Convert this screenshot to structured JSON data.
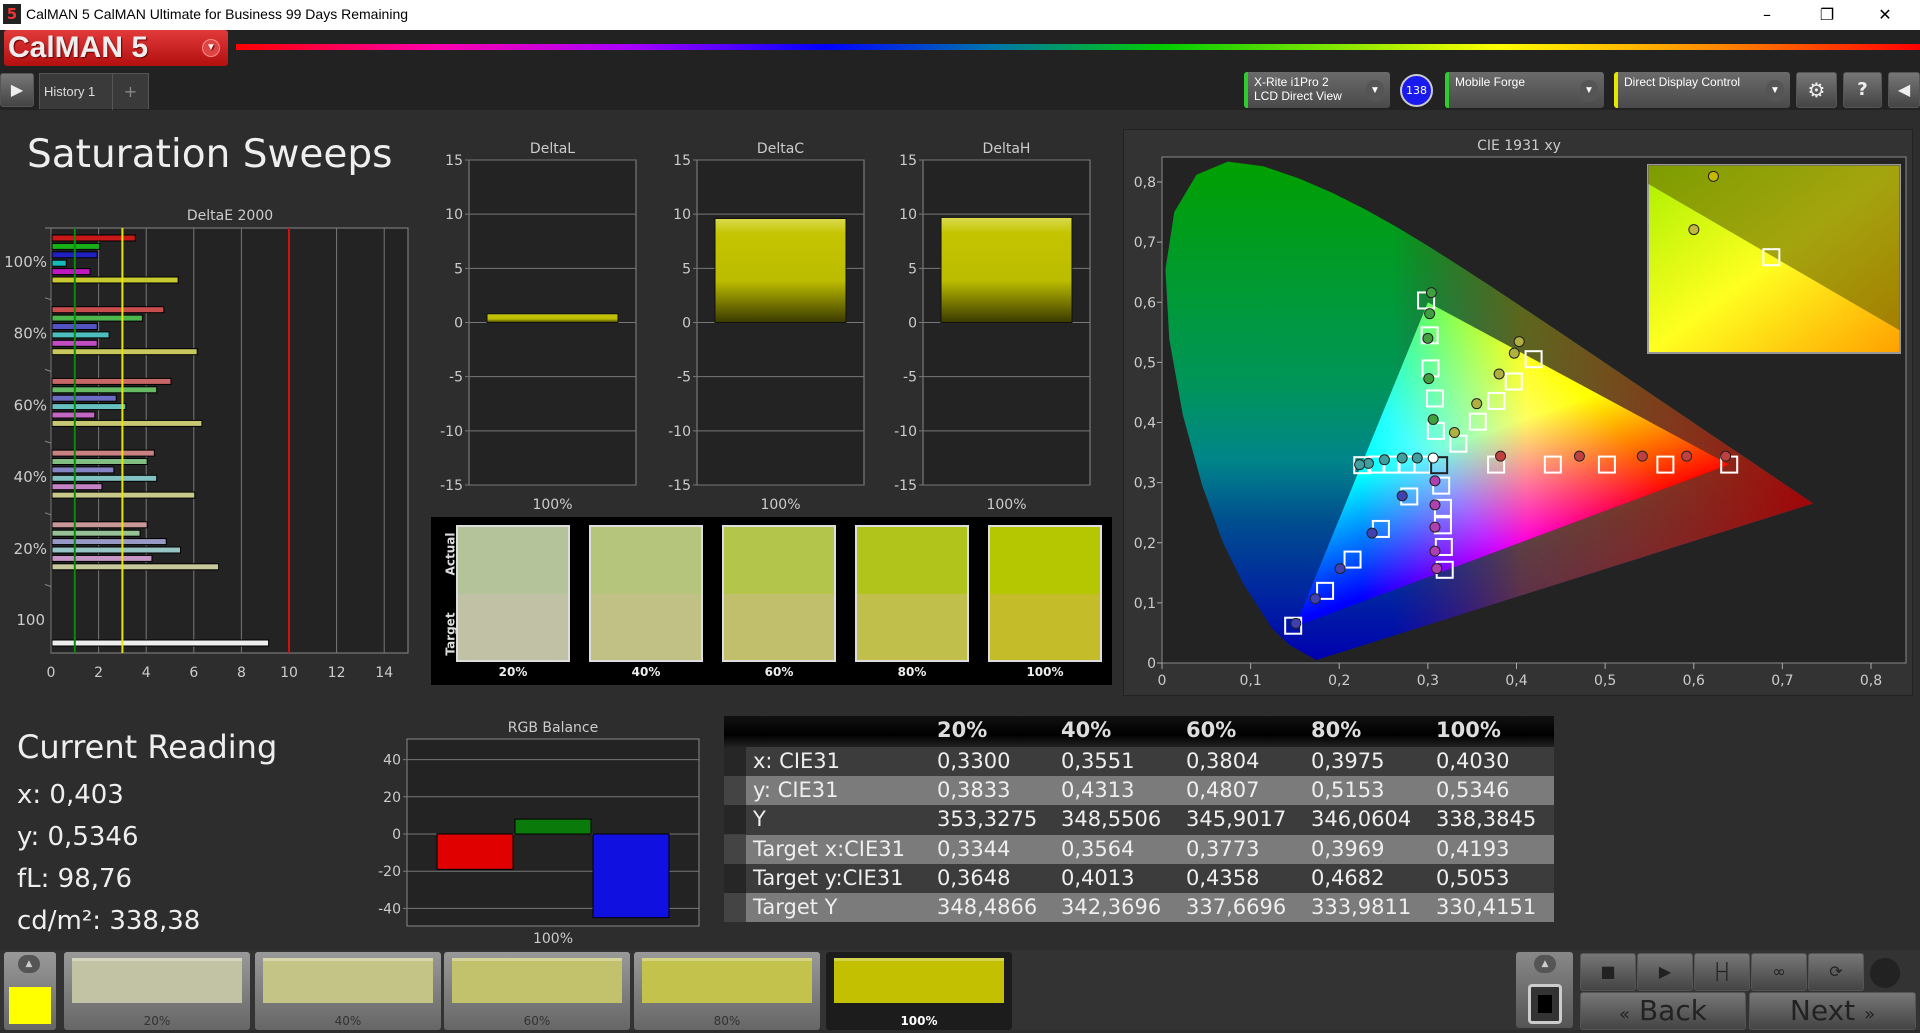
{
  "window": {
    "title": "CalMAN 5 CalMAN Ultimate for Business 99 Days Remaining",
    "app_icon": "5",
    "minimize": "–",
    "maximize": "❐",
    "close": "✕"
  },
  "header": {
    "logo": "CalMAN 5",
    "tab": "History 1",
    "add_tab": "+",
    "device1_line1": "X-Rite i1Pro 2",
    "device1_line2": "LCD Direct View",
    "badge": "138",
    "device2": "Mobile Forge",
    "device3": "Direct Display Control",
    "colors": {
      "device1": "#2ecc2e",
      "device2": "#2ecc2e",
      "device3": "#e6e600",
      "badge": "#1a1aee"
    }
  },
  "page_title": "Saturation Sweeps",
  "deltae": {
    "title": "DeltaE 2000",
    "xlim": [
      0,
      15
    ],
    "xticks": [
      "0",
      "2",
      "4",
      "6",
      "8",
      "10",
      "12",
      "14"
    ],
    "thresholds": [
      {
        "value": 1,
        "color": "#0a8a0a"
      },
      {
        "value": 3,
        "color": "#e6e600"
      },
      {
        "value": 10,
        "color": "#d01010"
      }
    ],
    "series_colors": [
      "#c81818",
      "#18b018",
      "#2020c0",
      "#18b8b8",
      "#c018c0",
      "#c8c830"
    ],
    "groups": [
      {
        "label": "100%",
        "values": [
          3.5,
          2.0,
          1.9,
          0.6,
          1.6,
          5.3
        ],
        "fade": 0
      },
      {
        "label": "80%",
        "values": [
          4.7,
          3.8,
          1.9,
          2.4,
          1.9,
          6.1
        ],
        "fade": 0.3
      },
      {
        "label": "60%",
        "values": [
          5.0,
          4.4,
          2.7,
          3.1,
          1.8,
          6.3
        ],
        "fade": 0.45
      },
      {
        "label": "40%",
        "values": [
          4.3,
          4.0,
          2.6,
          4.4,
          2.1,
          6.0
        ],
        "fade": 0.6
      },
      {
        "label": "20%",
        "values": [
          4.0,
          3.7,
          4.8,
          5.4,
          4.2,
          7.0
        ],
        "fade": 0.72
      }
    ],
    "white": {
      "label": "100",
      "value": 9.1
    }
  },
  "delta_charts": [
    {
      "title": "DeltaL",
      "category": "100%",
      "value": 0.8
    },
    {
      "title": "DeltaC",
      "category": "100%",
      "value": 9.6
    },
    {
      "title": "DeltaH",
      "category": "100%",
      "value": 9.7
    }
  ],
  "delta_axis": {
    "ylim": [
      -15,
      15
    ],
    "yticks": [
      "15",
      "10",
      "5",
      "0",
      "-5",
      "-10",
      "-15"
    ]
  },
  "swatches": {
    "actual_label": "Actual",
    "target_label": "Target",
    "items": [
      {
        "label": "20%",
        "actual": "#b5c39a",
        "target": "#c1c1a5"
      },
      {
        "label": "40%",
        "actual": "#b5c57c",
        "target": "#c1c185"
      },
      {
        "label": "60%",
        "actual": "#b4c54c",
        "target": "#c1bf6c"
      },
      {
        "label": "80%",
        "actual": "#b1c41c",
        "target": "#c1bf4c"
      },
      {
        "label": "100%",
        "actual": "#b4c700",
        "target": "#c4bd29"
      }
    ]
  },
  "cie": {
    "title": "CIE 1931 xy",
    "xlim": [
      0,
      0.8
    ],
    "ylim": [
      0,
      0.85
    ],
    "xticks": [
      "0",
      "0,1",
      "0,2",
      "0,3",
      "0,4",
      "0,5",
      "0,6",
      "0,7",
      "0,8"
    ],
    "yticks": [
      "0",
      "0,1",
      "0,2",
      "0,3",
      "0,4",
      "0,5",
      "0,6",
      "0,7",
      "0,8"
    ],
    "gamut": [
      [
        0.64,
        0.33
      ],
      [
        0.3,
        0.6
      ],
      [
        0.15,
        0.06
      ]
    ],
    "white_target": [
      0.3127,
      0.329
    ],
    "white_actual": [
      0.306,
      0.341
    ],
    "actual": {
      "red": [
        [
          0.382,
          0.344
        ],
        [
          0.471,
          0.344
        ],
        [
          0.542,
          0.344
        ],
        [
          0.592,
          0.344
        ],
        [
          0.636,
          0.344
        ]
      ],
      "green": [
        [
          0.306,
          0.405
        ],
        [
          0.301,
          0.473
        ],
        [
          0.3,
          0.54
        ],
        [
          0.302,
          0.581
        ],
        [
          0.304,
          0.616
        ]
      ],
      "blue": [
        [
          0.271,
          0.278
        ],
        [
          0.237,
          0.216
        ],
        [
          0.201,
          0.157
        ],
        [
          0.173,
          0.107
        ],
        [
          0.151,
          0.066
        ]
      ],
      "cyan": [
        [
          0.288,
          0.341
        ],
        [
          0.271,
          0.341
        ],
        [
          0.251,
          0.338
        ],
        [
          0.233,
          0.332
        ],
        [
          0.223,
          0.33
        ]
      ],
      "magenta": [
        [
          0.308,
          0.303
        ],
        [
          0.308,
          0.263
        ],
        [
          0.308,
          0.226
        ],
        [
          0.308,
          0.186
        ],
        [
          0.31,
          0.157
        ]
      ],
      "yellow": [
        [
          0.33,
          0.3833
        ],
        [
          0.3551,
          0.4313
        ],
        [
          0.3804,
          0.4807
        ],
        [
          0.3975,
          0.5153
        ],
        [
          0.403,
          0.5346
        ]
      ]
    },
    "target": {
      "red": [
        [
          0.377,
          0.33
        ],
        [
          0.441,
          0.33
        ],
        [
          0.502,
          0.33
        ],
        [
          0.568,
          0.33
        ],
        [
          0.64,
          0.33
        ]
      ],
      "green": [
        [
          0.309,
          0.386
        ],
        [
          0.308,
          0.44
        ],
        [
          0.303,
          0.49
        ],
        [
          0.302,
          0.545
        ],
        [
          0.298,
          0.603
        ]
      ],
      "blue": [
        [
          0.279,
          0.277
        ],
        [
          0.247,
          0.223
        ],
        [
          0.215,
          0.172
        ],
        [
          0.184,
          0.12
        ],
        [
          0.148,
          0.062
        ]
      ],
      "cyan": [
        [
          0.294,
          0.33
        ],
        [
          0.276,
          0.33
        ],
        [
          0.259,
          0.33
        ],
        [
          0.242,
          0.33
        ],
        [
          0.226,
          0.329
        ]
      ],
      "magenta": [
        [
          0.315,
          0.295
        ],
        [
          0.317,
          0.258
        ],
        [
          0.317,
          0.229
        ],
        [
          0.318,
          0.193
        ],
        [
          0.319,
          0.155
        ]
      ],
      "yellow": [
        [
          0.3344,
          0.3648
        ],
        [
          0.3564,
          0.4013
        ],
        [
          0.3773,
          0.4358
        ],
        [
          0.3969,
          0.4682
        ],
        [
          0.4193,
          0.5053
        ]
      ]
    },
    "point_colors": {
      "red": "#c04040",
      "green": "#40a040",
      "blue": "#4040b0",
      "cyan": "#40a0a0",
      "magenta": "#b040b0",
      "yellow": "#b0b040"
    }
  },
  "current_reading": {
    "title": "Current Reading",
    "x": "x: 0,403",
    "y": "y: 0,5346",
    "fl": "fL: 98,76",
    "cdm2": "cd/m²: 338,38"
  },
  "rgb_balance": {
    "title": "RGB Balance",
    "category": "100%",
    "ylim": [
      -50,
      50
    ],
    "yticks": [
      "40",
      "20",
      "0",
      "-20",
      "-40"
    ],
    "values": [
      {
        "name": "R",
        "value": -19,
        "color": "#e00000"
      },
      {
        "name": "G",
        "value": 8,
        "color": "#0a7a0a"
      },
      {
        "name": "B",
        "value": -45,
        "color": "#1010e0"
      }
    ]
  },
  "table": {
    "columns": [
      "",
      "20%",
      "40%",
      "60%",
      "80%",
      "100%"
    ],
    "rows": [
      [
        "x: CIE31",
        "0,3300",
        "0,3551",
        "0,3804",
        "0,3975",
        "0,4030"
      ],
      [
        "y: CIE31",
        "0,3833",
        "0,4313",
        "0,4807",
        "0,5153",
        "0,5346"
      ],
      [
        "Y",
        "353,3275",
        "348,5506",
        "345,9017",
        "346,0604",
        "338,3845"
      ],
      [
        "Target x:CIE31",
        "0,3344",
        "0,3564",
        "0,3773",
        "0,3969",
        "0,4193"
      ],
      [
        "Target y:CIE31",
        "0,3648",
        "0,4013",
        "0,4358",
        "0,4682",
        "0,5053"
      ],
      [
        "Target Y",
        "348,4866",
        "342,3696",
        "337,6696",
        "333,9811",
        "330,4151"
      ]
    ]
  },
  "bottom": {
    "current_color": "#ffff00",
    "items": [
      {
        "label": "20%",
        "color": "#c2c2a4"
      },
      {
        "label": "40%",
        "color": "#c4c486"
      },
      {
        "label": "60%",
        "color": "#c2c26c"
      },
      {
        "label": "80%",
        "color": "#c2c24c"
      },
      {
        "label": "100%",
        "color": "#c2c000",
        "selected": true
      }
    ],
    "back": "Back",
    "next": "Next"
  }
}
